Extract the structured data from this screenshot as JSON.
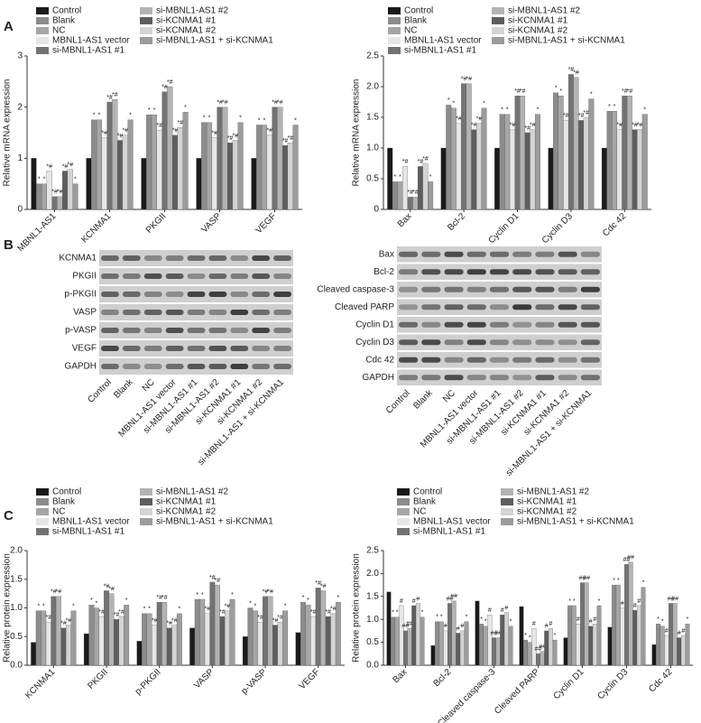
{
  "panel_labels": [
    "A",
    "B",
    "C"
  ],
  "blots": [
    {
      "rows": [
        "KCNMA1",
        "PKGII",
        "p-PKGII",
        "VASP",
        "p-VASP",
        "VEGF",
        "GAPDH"
      ],
      "lanes": [
        "Control",
        "Blank",
        "NC",
        "MBNL1-AS1 vector",
        "si-MBNL1-AS1 #1",
        "si-MBNL1-AS1 #2",
        "si-KCNMA1 #1",
        "si-KCNMA1 #2",
        "si-MBNL1-AS1 + si-KCNMA1"
      ]
    },
    {
      "rows": [
        "Bax",
        "Bcl-2",
        "Cleaved caspase-3",
        "Cleaved PARP",
        "Cyclin D1",
        "Cyclin D3",
        "Cdc 42",
        "GAPDH"
      ],
      "lanes": [
        "Control",
        "Blank",
        "NC",
        "MBNL1-AS1 vector",
        "si-MBNL1-AS1 #1",
        "si-MBNL1-AS1 #2",
        "si-KCNMA1 #1",
        "si-KCNMA1 #2",
        "si-MBNL1-AS1 + si-KCNMA1"
      ]
    }
  ],
  "chart_data": [
    {
      "type": "bar",
      "y_label": "Relative mRNA expression",
      "legend": "top",
      "categories": [
        "MBNL1-AS1",
        "KCNMA1",
        "PKGII",
        "VASP",
        "VEGF"
      ],
      "ylim": [
        0,
        3
      ],
      "yticks": [
        0,
        1,
        2,
        3
      ],
      "series": [
        {
          "name": "Control",
          "color": "#1a1a1a",
          "values": [
            1.0,
            1.0,
            1.0,
            1.0,
            1.0
          ]
        },
        {
          "name": "Blank",
          "color": "#8c8c8c",
          "annotation": "*",
          "values": [
            0.5,
            1.75,
            1.85,
            1.7,
            1.65
          ]
        },
        {
          "name": "NC",
          "color": "#a6a6a6",
          "annotation": "*",
          "values": [
            0.5,
            1.75,
            1.85,
            1.7,
            1.65
          ]
        },
        {
          "name": "MBNL1-AS1 vector",
          "color": "#e6e6e6",
          "annotation": "*#",
          "values": [
            0.75,
            1.4,
            1.55,
            1.4,
            1.45
          ]
        },
        {
          "name": "si-MBNL1-AS1 #1",
          "color": "#737373",
          "annotation": "*#",
          "values": [
            0.25,
            2.1,
            2.3,
            2.0,
            2.0
          ]
        },
        {
          "name": "si-MBNL1-AS1 #2",
          "color": "#b3b3b3",
          "annotation": "*#",
          "values": [
            0.25,
            2.15,
            2.4,
            2.0,
            2.0
          ]
        },
        {
          "name": "si-KCNMA1 #1",
          "color": "#5e5e5e",
          "annotation": "*#",
          "values": [
            0.75,
            1.35,
            1.45,
            1.3,
            1.25
          ]
        },
        {
          "name": "si-KCNMA1 #2",
          "color": "#d4d4d4",
          "annotation": "*#",
          "values": [
            0.78,
            1.45,
            1.6,
            1.35,
            1.3
          ]
        },
        {
          "name": "si-MBNL1-AS1 + si-KCNMA1",
          "color": "#9c9c9c",
          "annotation": "*",
          "values": [
            0.5,
            1.75,
            1.9,
            1.7,
            1.65
          ]
        }
      ]
    },
    {
      "type": "bar",
      "y_label": "Relative mRNA expression",
      "legend": "top",
      "categories": [
        "Bax",
        "Bcl-2",
        "Cyclin D1",
        "Cyclin D3",
        "Cdc 42"
      ],
      "ylim": [
        0,
        2.5
      ],
      "yticks": [
        0,
        0.5,
        {
          "value": 1,
          "label": "1.0"
        },
        1.5,
        {
          "value": 2,
          "label": "2.0"
        },
        2.5
      ],
      "series": [
        {
          "name": "Control",
          "color": "#1a1a1a",
          "values": [
            1.0,
            1.0,
            1.0,
            1.0,
            1.0
          ]
        },
        {
          "name": "Blank",
          "color": "#8c8c8c",
          "annotation": "*",
          "values": [
            0.45,
            1.7,
            1.55,
            1.9,
            1.6
          ]
        },
        {
          "name": "NC",
          "color": "#a6a6a6",
          "annotation": "*",
          "values": [
            0.45,
            1.65,
            1.55,
            1.85,
            1.6
          ]
        },
        {
          "name": "MBNL1-AS1 vector",
          "color": "#e6e6e6",
          "annotation": "*#",
          "values": [
            0.7,
            1.4,
            1.3,
            1.45,
            1.3
          ]
        },
        {
          "name": "si-MBNL1-AS1 #1",
          "color": "#737373",
          "annotation": "*#",
          "values": [
            0.2,
            2.05,
            1.85,
            2.2,
            1.85
          ]
        },
        {
          "name": "si-MBNL1-AS1 #2",
          "color": "#b3b3b3",
          "annotation": "*#",
          "values": [
            0.2,
            2.05,
            1.85,
            2.15,
            1.85
          ]
        },
        {
          "name": "si-KCNMA1 #1",
          "color": "#5e5e5e",
          "annotation": "*#",
          "values": [
            0.7,
            1.3,
            1.25,
            1.45,
            1.3
          ]
        },
        {
          "name": "si-KCNMA1 #2",
          "color": "#d4d4d4",
          "annotation": "*#",
          "values": [
            0.75,
            1.4,
            1.3,
            1.5,
            1.3
          ]
        },
        {
          "name": "si-MBNL1-AS1 + si-KCNMA1",
          "color": "#9c9c9c",
          "annotation": "*",
          "values": [
            0.45,
            1.65,
            1.55,
            1.8,
            1.55
          ]
        }
      ]
    },
    {
      "type": "bar",
      "y_label": "Relative protein expression",
      "legend": "top",
      "categories": [
        "KCNMA1",
        "PKGII",
        "p-PKGII",
        "VASP",
        "p-VASP",
        "VEGF"
      ],
      "ylim": [
        0,
        2
      ],
      "yticks": [
        {
          "value": 0,
          "label": "0.0"
        },
        0.5,
        {
          "value": 1,
          "label": "1.0"
        },
        1.5,
        {
          "value": 2,
          "label": "2.0"
        }
      ],
      "series": [
        {
          "name": "Control",
          "color": "#1a1a1a",
          "values": [
            0.4,
            0.55,
            0.42,
            0.65,
            0.5,
            0.57
          ]
        },
        {
          "name": "Blank",
          "color": "#8c8c8c",
          "annotation": "*",
          "values": [
            0.95,
            1.05,
            0.9,
            1.15,
            1.0,
            1.1
          ]
        },
        {
          "name": "NC",
          "color": "#a6a6a6",
          "annotation": "*",
          "values": [
            0.95,
            1.0,
            0.9,
            1.15,
            0.95,
            1.05
          ]
        },
        {
          "name": "MBNL1-AS1 vector",
          "color": "#e6e6e6",
          "annotation": "*#",
          "values": [
            0.75,
            0.85,
            0.7,
            0.9,
            0.75,
            0.85
          ]
        },
        {
          "name": "si-MBNL1-AS1 #1",
          "color": "#737373",
          "annotation": "*#",
          "values": [
            1.2,
            1.3,
            1.1,
            1.45,
            1.2,
            1.35
          ]
        },
        {
          "name": "si-MBNL1-AS1 #2",
          "color": "#b3b3b3",
          "annotation": "*#",
          "values": [
            1.2,
            1.25,
            1.1,
            1.4,
            1.2,
            1.3
          ]
        },
        {
          "name": "si-KCNMA1 #1",
          "color": "#5e5e5e",
          "annotation": "*#",
          "values": [
            0.65,
            0.8,
            0.65,
            0.85,
            0.7,
            0.85
          ]
        },
        {
          "name": "si-KCNMA1 #2",
          "color": "#d4d4d4",
          "annotation": "*#",
          "values": [
            0.7,
            0.85,
            0.7,
            0.95,
            0.75,
            0.9
          ]
        },
        {
          "name": "si-MBNL1-AS1 + si-KCNMA1",
          "color": "#9c9c9c",
          "annotation": "*",
          "values": [
            0.95,
            1.05,
            0.9,
            1.15,
            0.95,
            1.1
          ]
        }
      ]
    },
    {
      "type": "bar",
      "y_label": "Relative protein expression",
      "legend": "top",
      "categories": [
        "Bax",
        "Bcl-2",
        "Cleaved caspase-3",
        "Cleaved PARP",
        "Cyclin D1",
        "Cyclin D3",
        "Cdc 42"
      ],
      "ylim": [
        0,
        2.5
      ],
      "yticks": [
        {
          "value": 0,
          "label": "0.0"
        },
        0.5,
        {
          "value": 1,
          "label": "1.0"
        },
        1.5,
        {
          "value": 2,
          "label": "2.0"
        },
        2.5
      ],
      "series": [
        {
          "name": "Control",
          "color": "#1a1a1a",
          "values": [
            1.6,
            0.43,
            1.4,
            1.28,
            0.6,
            0.83,
            0.45
          ]
        },
        {
          "name": "Blank",
          "color": "#8c8c8c",
          "annotation": "*",
          "values": [
            1.05,
            0.95,
            0.9,
            0.55,
            1.3,
            1.75,
            0.9
          ]
        },
        {
          "name": "NC",
          "color": "#a6a6a6",
          "annotation": "*",
          "values": [
            1.05,
            0.95,
            0.85,
            0.5,
            1.3,
            1.75,
            0.85
          ]
        },
        {
          "name": "MBNL1-AS1 vector",
          "color": "#e6e6e6",
          "annotation": "#",
          "values": [
            1.3,
            0.75,
            1.1,
            0.8,
            0.9,
            1.25,
            0.65
          ]
        },
        {
          "name": "si-MBNL1-AS1 #1",
          "color": "#737373",
          "annotation": "##",
          "values": [
            0.75,
            1.35,
            0.6,
            0.25,
            1.8,
            2.2,
            1.35
          ]
        },
        {
          "name": "si-MBNL1-AS1 #2",
          "color": "#b3b3b3",
          "annotation": "##",
          "values": [
            0.8,
            1.4,
            0.6,
            0.3,
            1.8,
            2.25,
            1.35
          ]
        },
        {
          "name": "si-KCNMA1 #1",
          "color": "#5e5e5e",
          "annotation": "#",
          "values": [
            1.3,
            0.7,
            1.1,
            0.75,
            0.85,
            1.2,
            0.6
          ]
        },
        {
          "name": "si-KCNMA1 #2",
          "color": "#d4d4d4",
          "annotation": "#",
          "values": [
            1.35,
            0.75,
            1.15,
            0.8,
            0.9,
            1.3,
            0.65
          ]
        },
        {
          "name": "si-MBNL1-AS1 + si-KCNMA1",
          "color": "#9c9c9c",
          "annotation": "*",
          "values": [
            1.05,
            0.95,
            0.85,
            0.55,
            1.3,
            1.7,
            0.9
          ]
        }
      ]
    }
  ]
}
